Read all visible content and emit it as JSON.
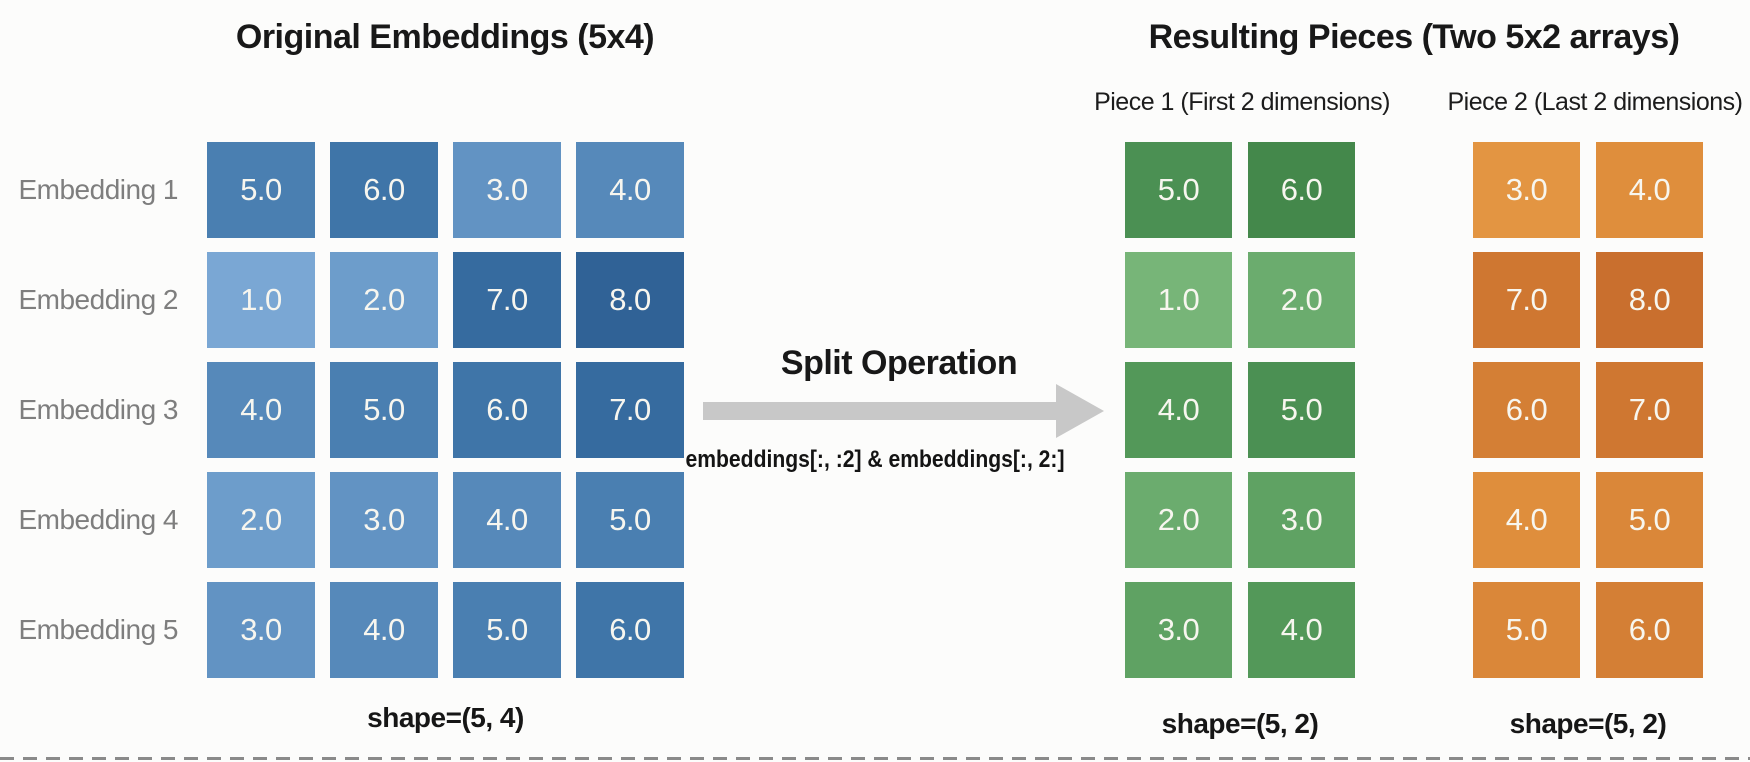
{
  "original": {
    "title": "Original Embeddings (5x4)",
    "row_labels": [
      "Embedding 1",
      "Embedding 2",
      "Embedding 3",
      "Embedding 4",
      "Embedding 5"
    ],
    "matrix": [
      [
        "5.0",
        "6.0",
        "3.0",
        "4.0"
      ],
      [
        "1.0",
        "2.0",
        "7.0",
        "8.0"
      ],
      [
        "4.0",
        "5.0",
        "6.0",
        "7.0"
      ],
      [
        "2.0",
        "3.0",
        "4.0",
        "5.0"
      ],
      [
        "3.0",
        "4.0",
        "5.0",
        "6.0"
      ]
    ],
    "shape_label": "shape=(5, 4)",
    "palette": {
      "1.0": "#7aa7d4",
      "2.0": "#6d9dcb",
      "3.0": "#6293c3",
      "4.0": "#5689ba",
      "5.0": "#4a7fb1",
      "6.0": "#3f75a8",
      "7.0": "#366b9f",
      "8.0": "#306296"
    }
  },
  "operation": {
    "title": "Split Operation",
    "code": "embeddings[:, :2] & embeddings[:, 2:]",
    "arrow_color": "#c8c8c8"
  },
  "result": {
    "title": "Resulting Pieces (Two 5x2 arrays)",
    "pieces": [
      {
        "subtitle": "Piece 1 (First 2 dimensions)",
        "matrix": [
          [
            "5.0",
            "6.0"
          ],
          [
            "1.0",
            "2.0"
          ],
          [
            "4.0",
            "5.0"
          ],
          [
            "2.0",
            "3.0"
          ],
          [
            "3.0",
            "4.0"
          ]
        ],
        "shape_label": "shape=(5, 2)",
        "palette": {
          "1.0": "#77b578",
          "2.0": "#6bac6e",
          "3.0": "#5fa263",
          "4.0": "#539859",
          "5.0": "#4b9053",
          "6.0": "#44884b"
        }
      },
      {
        "subtitle": "Piece 2 (Last 2 dimensions)",
        "matrix": [
          [
            "3.0",
            "4.0"
          ],
          [
            "7.0",
            "8.0"
          ],
          [
            "6.0",
            "7.0"
          ],
          [
            "4.0",
            "5.0"
          ],
          [
            "5.0",
            "6.0"
          ]
        ],
        "shape_label": "shape=(5, 2)",
        "palette": {
          "3.0": "#e39542",
          "4.0": "#df8e3c",
          "5.0": "#da8739",
          "6.0": "#d47f35",
          "7.0": "#cf7731",
          "8.0": "#c96f2e"
        }
      }
    ]
  }
}
